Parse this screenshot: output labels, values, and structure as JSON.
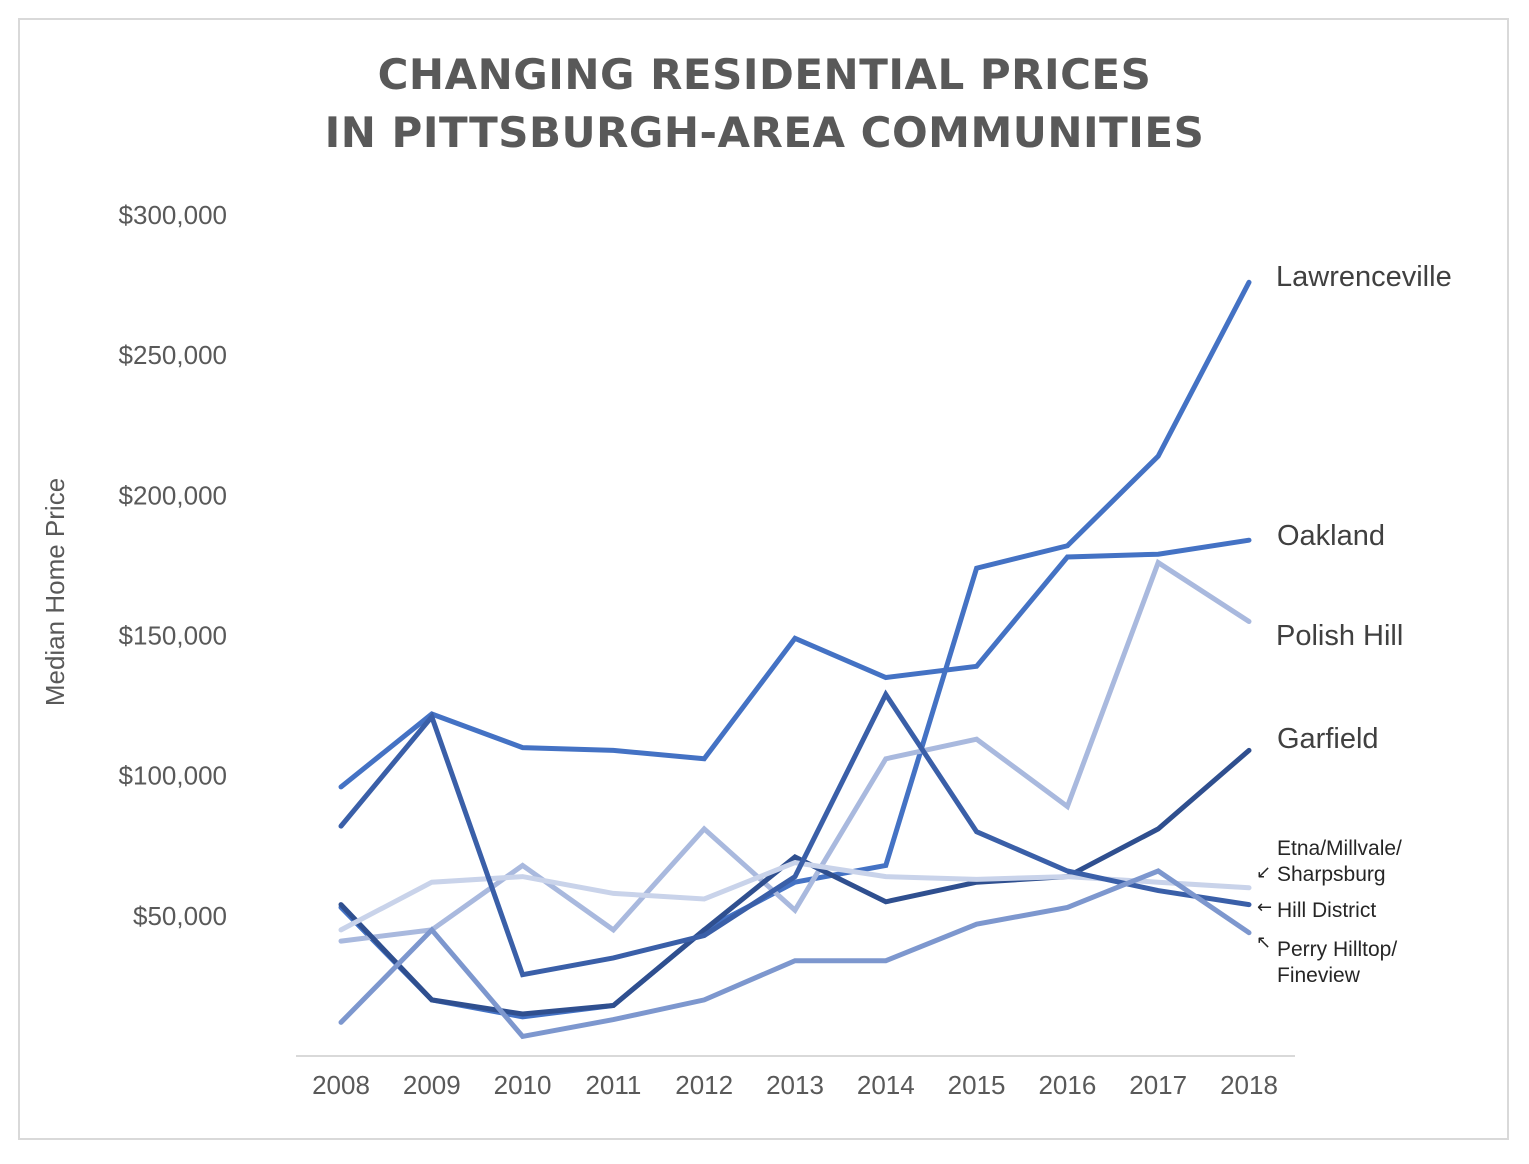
{
  "title_lines": [
    "CHANGING RESIDENTIAL PRICES",
    "IN PITTSBURGH-AREA COMMUNITIES"
  ],
  "chart_data": {
    "type": "line",
    "title": "CHANGING RESIDENTIAL PRICES IN PITTSBURGH-AREA COMMUNITIES",
    "xlabel": "",
    "ylabel": "Median Home Price",
    "x": [
      "2008",
      "2009",
      "2010",
      "2011",
      "2012",
      "2013",
      "2014",
      "2015",
      "2016",
      "2017",
      "2018"
    ],
    "ylim": [
      0,
      300000
    ],
    "yticks": [
      50000,
      100000,
      150000,
      200000,
      250000,
      300000
    ],
    "ytick_labels": [
      "$50,000",
      "$100,000",
      "$150,000",
      "$200,000",
      "$250,000",
      "$300,000"
    ],
    "grid": false,
    "legend": "direct labels at right end of lines",
    "series": [
      {
        "name": "Lawrenceville",
        "label_lines": [
          "Lawrenceville"
        ],
        "color": "#4472C4",
        "width": 5,
        "values": [
          53000,
          20000,
          14000,
          18000,
          45000,
          62000,
          68000,
          174000,
          182000,
          214000,
          276000
        ]
      },
      {
        "name": "Oakland",
        "label_lines": [
          "Oakland"
        ],
        "color": "#4472C4",
        "width": 5,
        "values": [
          96000,
          122000,
          110000,
          109000,
          106000,
          149000,
          135000,
          139000,
          178000,
          179000,
          184000
        ]
      },
      {
        "name": "Polish Hill",
        "label_lines": [
          "Polish Hill"
        ],
        "color": "#A9B9DE",
        "width": 5,
        "values": [
          41000,
          45000,
          68000,
          45000,
          81000,
          52000,
          106000,
          113000,
          89000,
          176000,
          155000
        ]
      },
      {
        "name": "Garfield",
        "label_lines": [
          "Garfield"
        ],
        "color": "#2F4F8F",
        "width": 5,
        "values": [
          54000,
          20000,
          15000,
          18000,
          45000,
          71000,
          55000,
          62000,
          64000,
          81000,
          109000
        ]
      },
      {
        "name": "Etna/Millvale/ Sharpsburg",
        "label_lines": [
          "Etna/Millvale/",
          "Sharpsburg"
        ],
        "color": "#C9D3EA",
        "width": 5,
        "values": [
          45000,
          62000,
          64000,
          58000,
          56000,
          69000,
          64000,
          63000,
          64000,
          62000,
          60000
        ]
      },
      {
        "name": "Hill District",
        "label_lines": [
          "Hill District"
        ],
        "color": "#3A5FA8",
        "width": 5,
        "values": [
          82000,
          121000,
          29000,
          35000,
          43000,
          64000,
          129000,
          80000,
          66000,
          59000,
          54000
        ]
      },
      {
        "name": "Perry Hilltop/ Fineview",
        "label_lines": [
          "Perry Hilltop/",
          "Fineview"
        ],
        "color": "#7D97CE",
        "width": 5,
        "values": [
          12000,
          45000,
          7000,
          13000,
          20000,
          34000,
          34000,
          47000,
          53000,
          66000,
          44000
        ]
      }
    ],
    "extra_series_note": "",
    "annotations": []
  }
}
